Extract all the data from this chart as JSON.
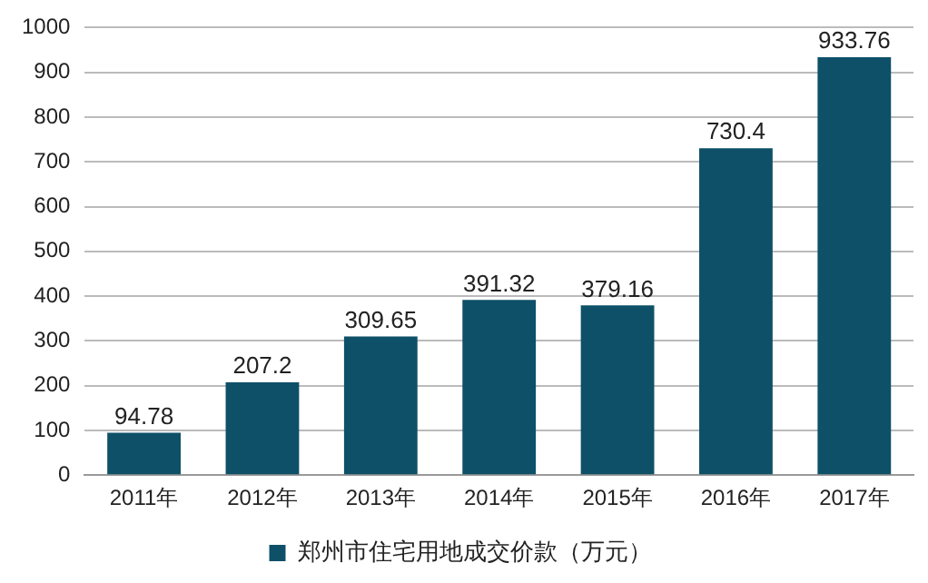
{
  "chart_data": {
    "type": "bar",
    "categories": [
      "2011年",
      "2012年",
      "2013年",
      "2014年",
      "2015年",
      "2016年",
      "2017年"
    ],
    "series": [
      {
        "name": "郑州市住宅用地成交价款（万元）",
        "color": "#0e5068",
        "values": [
          94.78,
          207.2,
          309.65,
          391.32,
          379.16,
          730.4,
          933.76
        ]
      }
    ],
    "ylim": [
      0,
      1000
    ],
    "yticks": [
      0,
      100,
      200,
      300,
      400,
      500,
      600,
      700,
      800,
      900,
      1000
    ],
    "grid": "y",
    "legend": "bottom",
    "data_labels": true
  }
}
